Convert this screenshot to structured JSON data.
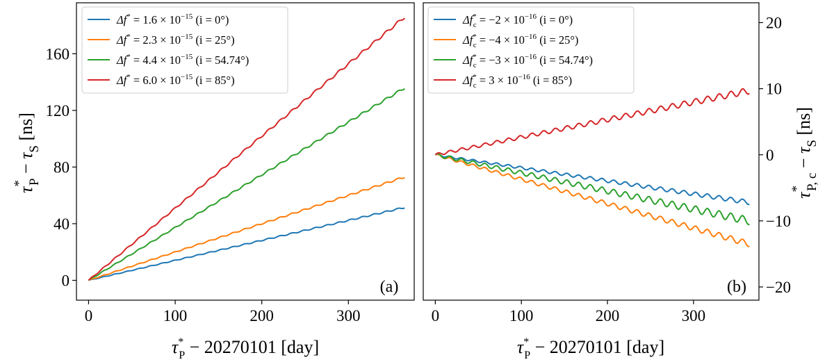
{
  "chart_data": [
    {
      "type": "line",
      "panel_label": "(a)",
      "xlabel_sym": "τ",
      "xlabel_sup": "*",
      "xlabel_sub": "P",
      "xlabel_rest": " − 20270101 [day]",
      "ylabel_a": "τ",
      "ylabel_a_sup": "*",
      "ylabel_a_sub": "P",
      "ylabel_mid": " − ",
      "ylabel_b": "τ",
      "ylabel_b_sub": "S",
      "ylabel_rest": " [ns]",
      "xlim": [
        -14,
        376
      ],
      "ylim": [
        -14,
        196
      ],
      "xticks": [
        0,
        100,
        200,
        300
      ],
      "yticks": [
        0,
        40,
        80,
        120,
        160
      ],
      "ytick_side": "left",
      "legend_position": "top-left",
      "series": [
        {
          "name": "Δf* = 1.6×10⁻¹⁵ (i = 0°)",
          "color": "#1f77b4",
          "x": [
            0,
            365
          ],
          "y": [
            0,
            51.5
          ],
          "wiggle": 0.5
        },
        {
          "name": "Δf* = 2.3×10⁻¹⁵ (i = 25°)",
          "color": "#ff7f0e",
          "x": [
            0,
            365
          ],
          "y": [
            0,
            73
          ],
          "wiggle": 0.6
        },
        {
          "name": "Δf* = 4.4×10⁻¹⁵ (i = 54.74°)",
          "color": "#2ca02c",
          "x": [
            0,
            365
          ],
          "y": [
            0,
            136
          ],
          "wiggle": 0.8
        },
        {
          "name": "Δf* = 6.0×10⁻¹⁵ (i = 85°)",
          "color": "#d62728",
          "x": [
            0,
            365
          ],
          "y": [
            0,
            186
          ],
          "wiggle": 1.0
        }
      ],
      "legend": [
        {
          "sym": "Δf",
          "sup": "*",
          "sub": "",
          "eq": " = 1.6 × 10",
          "exp": "−15",
          "paren": " (i = 0°)",
          "color": "#1f77b4"
        },
        {
          "sym": "Δf",
          "sup": "*",
          "sub": "",
          "eq": " = 2.3 × 10",
          "exp": "−15",
          "paren": " (i = 25°)",
          "color": "#ff7f0e"
        },
        {
          "sym": "Δf",
          "sup": "*",
          "sub": "",
          "eq": " = 4.4 × 10",
          "exp": "−15",
          "paren": " (i = 54.74°)",
          "color": "#2ca02c"
        },
        {
          "sym": "Δf",
          "sup": "*",
          "sub": "",
          "eq": " = 6.0 × 10",
          "exp": "−15",
          "paren": " (i = 85°)",
          "color": "#d62728"
        }
      ]
    },
    {
      "type": "line",
      "panel_label": "(b)",
      "xlabel_sym": "τ",
      "xlabel_sup": "*",
      "xlabel_sub": "P",
      "xlabel_rest": " − 20270101 [day]",
      "ylabel_a": "τ",
      "ylabel_a_sup": "*",
      "ylabel_a_sub": "P, c",
      "ylabel_mid": " − ",
      "ylabel_b": "τ",
      "ylabel_b_sub": "S",
      "ylabel_rest": " [ns]",
      "xlim": [
        -14,
        376
      ],
      "ylim": [
        -22,
        23
      ],
      "xticks": [
        0,
        100,
        200,
        300
      ],
      "yticks": [
        -20,
        -10,
        0,
        10,
        20
      ],
      "ytick_side": "right",
      "legend_position": "top-left",
      "series": [
        {
          "name": "Δf*c = −2×10⁻¹⁶ (i = 0°)",
          "color": "#1f77b4",
          "x": [
            0,
            365
          ],
          "y": [
            0,
            -7.2
          ],
          "wiggle": 0.35
        },
        {
          "name": "Δf*c = −4×10⁻¹⁶ (i = 25°)",
          "color": "#ff7f0e",
          "x": [
            0,
            365
          ],
          "y": [
            0,
            -13.5
          ],
          "wiggle": 0.45
        },
        {
          "name": "Δf*c = −3×10⁻¹⁶ (i = 54.74°)",
          "color": "#2ca02c",
          "x": [
            0,
            365
          ],
          "y": [
            0,
            -10
          ],
          "wiggle": 0.6
        },
        {
          "name": "Δf*c = 3×10⁻¹⁶ (i = 85°)",
          "color": "#d62728",
          "x": [
            0,
            365
          ],
          "y": [
            0,
            9.7
          ],
          "wiggle": 0.5
        }
      ],
      "legend": [
        {
          "sym": "Δf",
          "sup": "*",
          "sub": "c",
          "eq": " = −2 × 10",
          "exp": "−16",
          "paren": " (i = 0°)",
          "color": "#1f77b4"
        },
        {
          "sym": "Δf",
          "sup": "*",
          "sub": "c",
          "eq": " = −4 × 10",
          "exp": "−16",
          "paren": " (i = 25°)",
          "color": "#ff7f0e"
        },
        {
          "sym": "Δf",
          "sup": "*",
          "sub": "c",
          "eq": " = −3 × 10",
          "exp": "−16",
          "paren": " (i = 54.74°)",
          "color": "#2ca02c"
        },
        {
          "sym": "Δf",
          "sup": "*",
          "sub": "c",
          "eq": " =   3 × 10",
          "exp": "−16",
          "paren": " (i = 85°)",
          "color": "#d62728"
        }
      ]
    }
  ]
}
